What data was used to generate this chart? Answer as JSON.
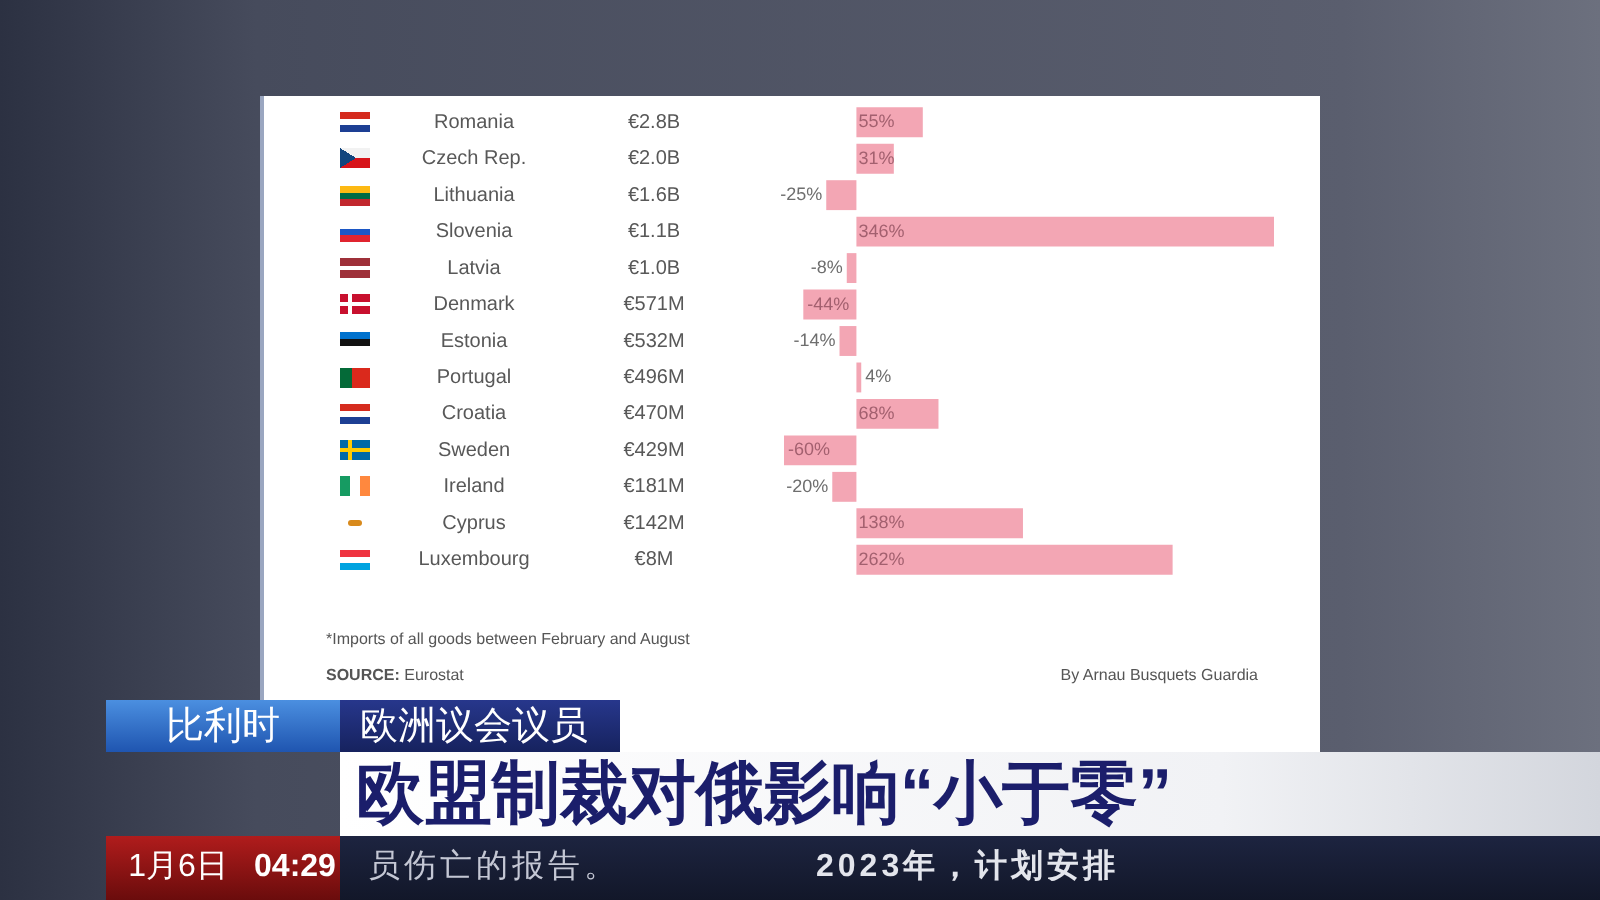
{
  "chart_data": {
    "type": "bar",
    "orientation": "horizontal",
    "title": "欧盟制裁对俄影响“小于零”",
    "categories": [
      "Romania",
      "Czech Rep.",
      "Lithuania",
      "Slovenia",
      "Latvia",
      "Denmark",
      "Estonia",
      "Portugal",
      "Croatia",
      "Sweden",
      "Ireland",
      "Cyprus",
      "Luxembourg"
    ],
    "values": [
      55,
      31,
      -25,
      346,
      -8,
      -44,
      -14,
      4,
      68,
      -60,
      -20,
      138,
      262
    ],
    "color": "#f3a6b4",
    "value_labels": [
      "55%",
      "31%",
      "-25%",
      "346%",
      "-8%",
      "-44%",
      "-14%",
      "4%",
      "68%",
      "-60%",
      "-20%",
      "138%",
      "262%"
    ],
    "tick_labels": "y",
    "annotations": [
      "€2.8B",
      "€2.0B",
      "€1.6B",
      "€1.1B",
      "€1.0B",
      "€571M",
      "€532M",
      "€496M",
      "€470M",
      "€429M",
      "€181M",
      "€142M",
      "€8M",
      "*Imports of all goods between February and August",
      "SOURCE: Eurostat",
      "By Arnau Busquets Guardia",
      "比利时",
      "欧洲议会议员",
      "1月6日",
      "04:29",
      "员伤亡的报告。",
      "2023年，计划安排"
    ]
  }
}
